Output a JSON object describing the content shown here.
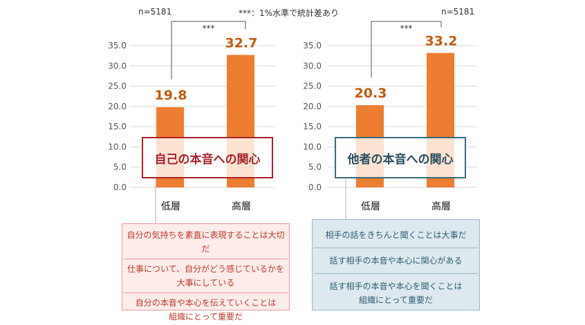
{
  "colors": {
    "bar": "#ed7d31",
    "value_text": "#c55a11",
    "left_box_border": "#a9232b",
    "left_box_text": "#a9232b",
    "left_note_bg": "#fdecea",
    "left_note_border": "#ea9aa0",
    "left_note_text": "#c0392b",
    "right_box_border": "#3b6a7e",
    "right_box_text": "#274e5e",
    "right_note_bg": "#dde9ee",
    "right_note_border": "#9bb9c6",
    "right_note_text": "#2e5e73",
    "axis_text": "#555555",
    "grid": "#d9d9d9"
  },
  "significance_note": "***：1%水準で統計差あり",
  "chart_data": [
    {
      "type": "bar",
      "n_label": "n=5181",
      "title_box": "自己の本音への関心",
      "categories": [
        "低層",
        "高層"
      ],
      "values": [
        19.8,
        32.7
      ],
      "value_labels": [
        "19.8",
        "32.7"
      ],
      "ylim": [
        0,
        35
      ],
      "yticks": [
        "0.0",
        "5.0",
        "10.0",
        "15.0",
        "20.0",
        "25.0",
        "30.0",
        "35.0"
      ],
      "significance": "***",
      "notes": [
        [
          "自分の気持ちを素直に表現することは大切だ"
        ],
        [
          "仕事について、自分がどう感じているかを",
          "大事にしている"
        ],
        [
          "自分の本音や本心を伝えていくことは",
          "組織にとって重要だ"
        ]
      ]
    },
    {
      "type": "bar",
      "n_label": "n=5181",
      "title_box": "他者の本音への関心",
      "categories": [
        "低層",
        "高層"
      ],
      "values": [
        20.3,
        33.2
      ],
      "value_labels": [
        "20.3",
        "33.2"
      ],
      "ylim": [
        0,
        35
      ],
      "yticks": [
        "0.0",
        "5.0",
        "10.0",
        "15.0",
        "20.0",
        "25.0",
        "30.0",
        "35.0"
      ],
      "significance": "***",
      "notes": [
        [
          "相手の話をきちんと聞くことは大事だ"
        ],
        [
          "話す相手の本音や本心に関心がある"
        ],
        [
          "話す相手の本音や本心を聞くことは",
          "組織にとって重要だ"
        ]
      ]
    }
  ]
}
